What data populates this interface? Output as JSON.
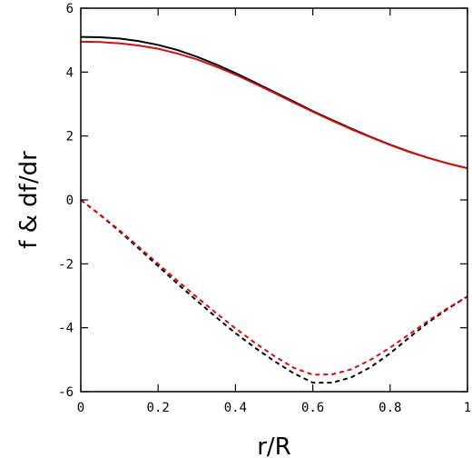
{
  "chart_data": {
    "type": "line",
    "xlabel": "r/R",
    "ylabel": "f & df/dr",
    "xlim": [
      0,
      1
    ],
    "ylim": [
      -6,
      6
    ],
    "xticks": [
      0,
      0.2,
      0.4,
      0.6,
      0.8,
      1
    ],
    "xtick_labels": [
      "0",
      "0.2",
      "0.4",
      "0.6",
      "0.8",
      "1"
    ],
    "yticks": [
      -6,
      -4,
      -2,
      0,
      2,
      4,
      6
    ],
    "ytick_labels": [
      "-6",
      "-4",
      "-2",
      "0",
      "2",
      "4",
      "6"
    ],
    "grid": false,
    "series": [
      {
        "color": "#000000",
        "style": "solid",
        "x": [
          0,
          0.05,
          0.1,
          0.15,
          0.2,
          0.25,
          0.3,
          0.35,
          0.4,
          0.45,
          0.5,
          0.55,
          0.6,
          0.65,
          0.7,
          0.75,
          0.8,
          0.85,
          0.9,
          0.95,
          1
        ],
        "y": [
          5.1,
          5.09,
          5.05,
          4.97,
          4.85,
          4.69,
          4.48,
          4.24,
          3.97,
          3.68,
          3.38,
          3.08,
          2.78,
          2.5,
          2.23,
          1.97,
          1.73,
          1.51,
          1.31,
          1.14,
          0.99
        ]
      },
      {
        "color": "#cc1111",
        "style": "solid",
        "x": [
          0,
          0.05,
          0.1,
          0.15,
          0.2,
          0.25,
          0.3,
          0.35,
          0.4,
          0.45,
          0.5,
          0.55,
          0.6,
          0.65,
          0.7,
          0.75,
          0.8,
          0.85,
          0.9,
          0.95,
          1
        ],
        "y": [
          4.95,
          4.94,
          4.9,
          4.83,
          4.73,
          4.58,
          4.4,
          4.17,
          3.92,
          3.64,
          3.35,
          3.05,
          2.76,
          2.48,
          2.21,
          1.96,
          1.72,
          1.5,
          1.31,
          1.14,
          0.99
        ]
      },
      {
        "color": "#000000",
        "style": "dashed",
        "x": [
          0,
          0.05,
          0.1,
          0.15,
          0.2,
          0.25,
          0.3,
          0.35,
          0.4,
          0.45,
          0.5,
          0.55,
          0.6,
          0.65,
          0.7,
          0.75,
          0.8,
          0.85,
          0.9,
          0.95,
          1
        ],
        "y": [
          0,
          -0.47,
          -0.98,
          -1.52,
          -2.07,
          -2.62,
          -3.15,
          -3.67,
          -4.17,
          -4.62,
          -5.04,
          -5.42,
          -5.72,
          -5.72,
          -5.55,
          -5.23,
          -4.8,
          -4.3,
          -3.82,
          -3.4,
          -3.02
        ]
      },
      {
        "color": "#cc1111",
        "style": "dashed",
        "x": [
          0,
          0.05,
          0.1,
          0.15,
          0.2,
          0.25,
          0.3,
          0.35,
          0.4,
          0.45,
          0.5,
          0.55,
          0.6,
          0.65,
          0.7,
          0.75,
          0.8,
          0.85,
          0.9,
          0.95,
          1
        ],
        "y": [
          0,
          -0.46,
          -0.95,
          -1.47,
          -2.0,
          -2.53,
          -3.04,
          -3.54,
          -4.02,
          -4.47,
          -4.88,
          -5.25,
          -5.47,
          -5.46,
          -5.3,
          -5.0,
          -4.62,
          -4.2,
          -3.77,
          -3.38,
          -3.02
        ]
      }
    ]
  }
}
